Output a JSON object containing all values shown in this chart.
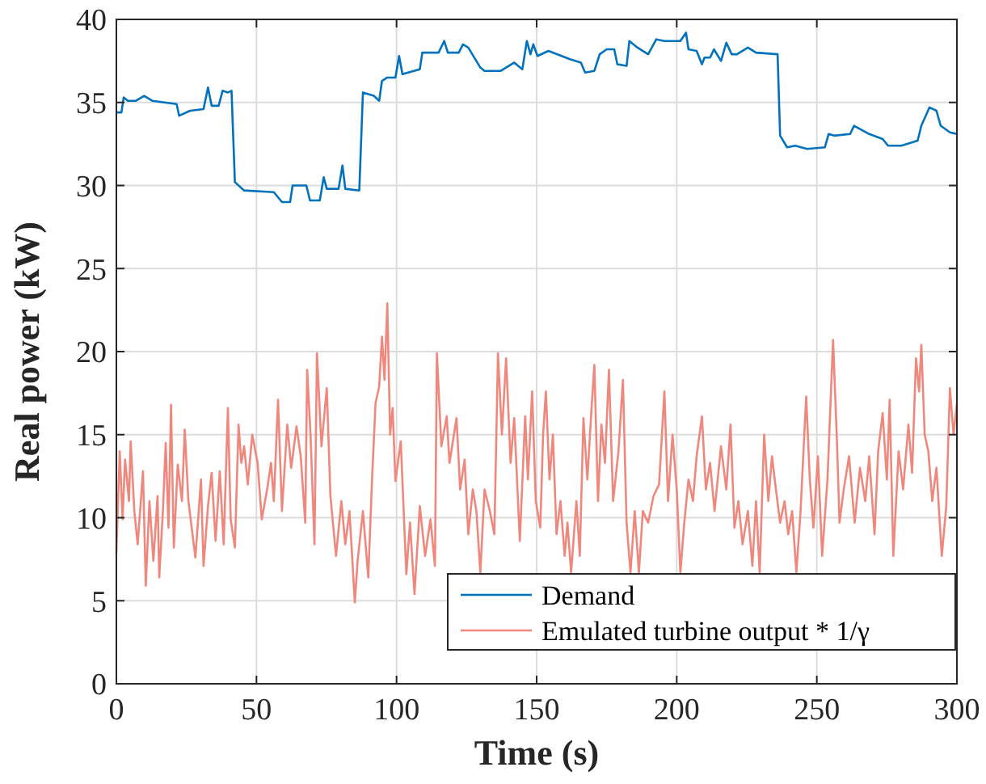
{
  "chart_data": {
    "type": "line",
    "xlabel": "Time (s)",
    "ylabel": "Real power (kW)",
    "xlim": [
      0,
      300
    ],
    "ylim": [
      0,
      40
    ],
    "xticks": [
      0,
      50,
      100,
      150,
      200,
      250,
      300
    ],
    "yticks": [
      0,
      5,
      10,
      15,
      20,
      25,
      30,
      35,
      40
    ],
    "grid": true,
    "legend": "bottom right",
    "line_style": "solid",
    "marker": "none",
    "series": [
      {
        "name": "Demand",
        "color": "#0072bd",
        "x": [
          0.2,
          1.8,
          2.6,
          4.1,
          7,
          9.9,
          12.8,
          21.5,
          22.4,
          26.3,
          31.1,
          32.7,
          34,
          36.5,
          37.9,
          39.8,
          41.1,
          42.3,
          45.6,
          56.2,
          59.1,
          62,
          62.9,
          67.8,
          69.1,
          72.6,
          74,
          75.1,
          79.3,
          80.7,
          81.7,
          86.7,
          88,
          91.9,
          93.8,
          94.8,
          96.7,
          99.6,
          100.9,
          102.1,
          108.3,
          109.2,
          115,
          117,
          118.3,
          122.2,
          123.7,
          125.6,
          129.9,
          131.4,
          137.2,
          142,
          144.9,
          146.5,
          147.8,
          148.8,
          150.3,
          154.2,
          161.9,
          165.8,
          167.3,
          170.6,
          172.5,
          175,
          177.7,
          178.8,
          182.1,
          183.1,
          186,
          189.8,
          192.7,
          195.6,
          201.3,
          203.3,
          204.2,
          207.1,
          209,
          209.9,
          211.9,
          213.3,
          215.8,
          217.7,
          219.6,
          221.5,
          225.4,
          228.3,
          236,
          236.9,
          239.4,
          242.3,
          246.5,
          252.9,
          254.2,
          256.2,
          261.9,
          263.3,
          268.7,
          273.5,
          275.4,
          280.2,
          286,
          287.3,
          290.2,
          292.7,
          294.2,
          297.5,
          300
        ],
        "values": [
          34.4,
          34.4,
          35.3,
          35.1,
          35.1,
          35.4,
          35.1,
          34.9,
          34.2,
          34.5,
          34.6,
          35.9,
          34.8,
          34.8,
          35.7,
          35.6,
          35.7,
          30.2,
          29.7,
          29.6,
          29.0,
          29.0,
          30.0,
          30.0,
          29.1,
          29.1,
          30.5,
          29.8,
          29.8,
          31.2,
          29.8,
          29.7,
          35.6,
          35.4,
          35.1,
          36.3,
          36.5,
          36.5,
          37.8,
          36.7,
          37.0,
          38.0,
          38.0,
          38.7,
          38.0,
          38.0,
          38.5,
          38.3,
          37.1,
          36.9,
          36.9,
          37.4,
          37.0,
          38.7,
          37.9,
          38.5,
          37.8,
          38.1,
          37.6,
          37.4,
          36.8,
          36.9,
          37.9,
          38.2,
          38.2,
          37.3,
          37.2,
          38.7,
          38.3,
          37.9,
          38.8,
          38.7,
          38.7,
          39.2,
          38.2,
          38.1,
          37.3,
          37.7,
          37.7,
          38.2,
          37.5,
          38.6,
          37.9,
          37.9,
          38.3,
          38.0,
          37.9,
          33.0,
          32.3,
          32.4,
          32.2,
          32.3,
          33.1,
          33.0,
          33.1,
          33.6,
          33.1,
          32.8,
          32.4,
          32.4,
          32.7,
          33.6,
          34.7,
          34.5,
          33.6,
          33.2,
          33.1
        ]
      },
      {
        "name": "Emulated turbine output * 1/γ",
        "color": "#f0877c",
        "x": [
          0,
          1.2,
          2.2,
          3.1,
          4.5,
          5.1,
          6.4,
          7.6,
          9.5,
          10.5,
          11.8,
          13.2,
          14.7,
          15.3,
          16.6,
          17.6,
          18.6,
          19.5,
          20.5,
          21.9,
          23.4,
          24.4,
          25.7,
          28.2,
          30.2,
          31.1,
          32.7,
          34,
          35.4,
          36.9,
          38.3,
          39.8,
          40.8,
          42.3,
          43.6,
          44.6,
          45.6,
          46.9,
          48.5,
          50.4,
          51.9,
          53.9,
          55.2,
          56.2,
          57.7,
          59.1,
          61,
          62.4,
          64.3,
          65.8,
          67.4,
          68.1,
          69.3,
          70.7,
          71.6,
          73.2,
          75.1,
          76.4,
          78.4,
          80.3,
          81.7,
          83.2,
          85.1,
          86.1,
          88,
          89.9,
          91.3,
          92.5,
          93.8,
          94.8,
          95.7,
          96.7,
          97.7,
          98.6,
          99.6,
          101.5,
          103.5,
          104.8,
          106.4,
          108.3,
          110.2,
          112.1,
          113.7,
          114.4,
          116,
          117.9,
          118.9,
          121.4,
          122.7,
          124.3,
          125.6,
          127.2,
          128.5,
          129.9,
          131.4,
          133.3,
          134.9,
          136.2,
          137.6,
          139.1,
          140.7,
          142,
          144,
          145.9,
          146.9,
          148.4,
          149.7,
          151.3,
          152.3,
          153.3,
          154.6,
          155.8,
          157.1,
          158.5,
          160,
          161,
          162.3,
          164.2,
          165.4,
          166.7,
          168.1,
          169.6,
          170.6,
          171.9,
          173.1,
          174.4,
          175.8,
          177.3,
          179.2,
          180.8,
          182.1,
          183.5,
          185,
          186.5,
          187.9,
          189.8,
          191.7,
          193.7,
          195.6,
          196.9,
          198.5,
          200,
          201.3,
          202.7,
          204.2,
          205.8,
          207.1,
          209,
          210.4,
          211.9,
          213.5,
          215.8,
          217.7,
          219.2,
          220.6,
          222,
          223.5,
          225.4,
          227,
          228.3,
          229.6,
          231.2,
          232.7,
          234,
          235.4,
          236.9,
          238.5,
          239.8,
          241.2,
          242.7,
          244.2,
          246.2,
          247.5,
          248.8,
          250.4,
          251.9,
          253.8,
          255.8,
          257.1,
          258.1,
          259.6,
          261.5,
          263.5,
          265.4,
          267.3,
          268.7,
          270.6,
          271.9,
          273.5,
          275,
          276,
          277.3,
          279.2,
          280.8,
          282.7,
          284,
          285.4,
          286.5,
          287.3,
          288.5,
          289.8,
          291.2,
          292.7,
          294.6,
          296.2,
          297.5,
          298.8,
          300
        ],
        "values": [
          7.9,
          14,
          9.9,
          13.5,
          11,
          14.6,
          10.4,
          8.4,
          12.8,
          5.9,
          11,
          7.4,
          11.3,
          6.4,
          10.4,
          14.5,
          9.4,
          16.8,
          8.2,
          13.2,
          11,
          15.3,
          11,
          7.6,
          12.3,
          7.1,
          10.7,
          12.7,
          8.6,
          12.8,
          8.4,
          16.6,
          9.9,
          8.2,
          15.6,
          13.3,
          14.3,
          12,
          15,
          13.3,
          9.9,
          11.8,
          13.3,
          11,
          17.1,
          10.4,
          15.6,
          13,
          15.5,
          13.7,
          9.7,
          18.9,
          15,
          8.4,
          19.9,
          14.3,
          17.8,
          11.3,
          7.7,
          11,
          8.4,
          10.4,
          4.9,
          7.4,
          10.4,
          6.4,
          12.5,
          16.9,
          17.9,
          20.9,
          18.3,
          22.9,
          15,
          16.6,
          12.2,
          14.6,
          6.6,
          9.7,
          5.4,
          10.7,
          7.7,
          9.9,
          7.1,
          19.9,
          14.3,
          16.1,
          13.3,
          16,
          11.7,
          13.5,
          9,
          11.7,
          10.4,
          6.7,
          11.7,
          10.4,
          9,
          19.9,
          15,
          19.6,
          13.3,
          16,
          8.6,
          16.1,
          12.3,
          17.6,
          11,
          9.4,
          15,
          17.6,
          12.3,
          15,
          9,
          11,
          7.7,
          9.7,
          6.7,
          11,
          7.7,
          16,
          12.3,
          16.6,
          19.2,
          11,
          15.6,
          13.3,
          18.9,
          11,
          14,
          18.3,
          9.7,
          6.7,
          10.4,
          6.7,
          10.4,
          9.7,
          11.3,
          12,
          17.6,
          11,
          15,
          11.7,
          6.7,
          9.7,
          12.3,
          11,
          13.7,
          16.1,
          11.7,
          13.3,
          10.4,
          14.3,
          11.7,
          15.6,
          9.4,
          11,
          8.4,
          10.4,
          7.1,
          11,
          6.7,
          15,
          11,
          13.7,
          11.7,
          9.7,
          11,
          9,
          10.4,
          6.7,
          10.4,
          17.3,
          12.3,
          9.4,
          13.7,
          7.7,
          12.3,
          20.7,
          15,
          9.7,
          11.7,
          13.7,
          9.7,
          13,
          11,
          13.7,
          9,
          14,
          16.3,
          12.3,
          17.1,
          7.7,
          14,
          11.7,
          15.6,
          12.7,
          19.6,
          17.6,
          20.4,
          15,
          14,
          11,
          13,
          7.7,
          10.7,
          17.8,
          15,
          16.9
        ]
      }
    ]
  }
}
